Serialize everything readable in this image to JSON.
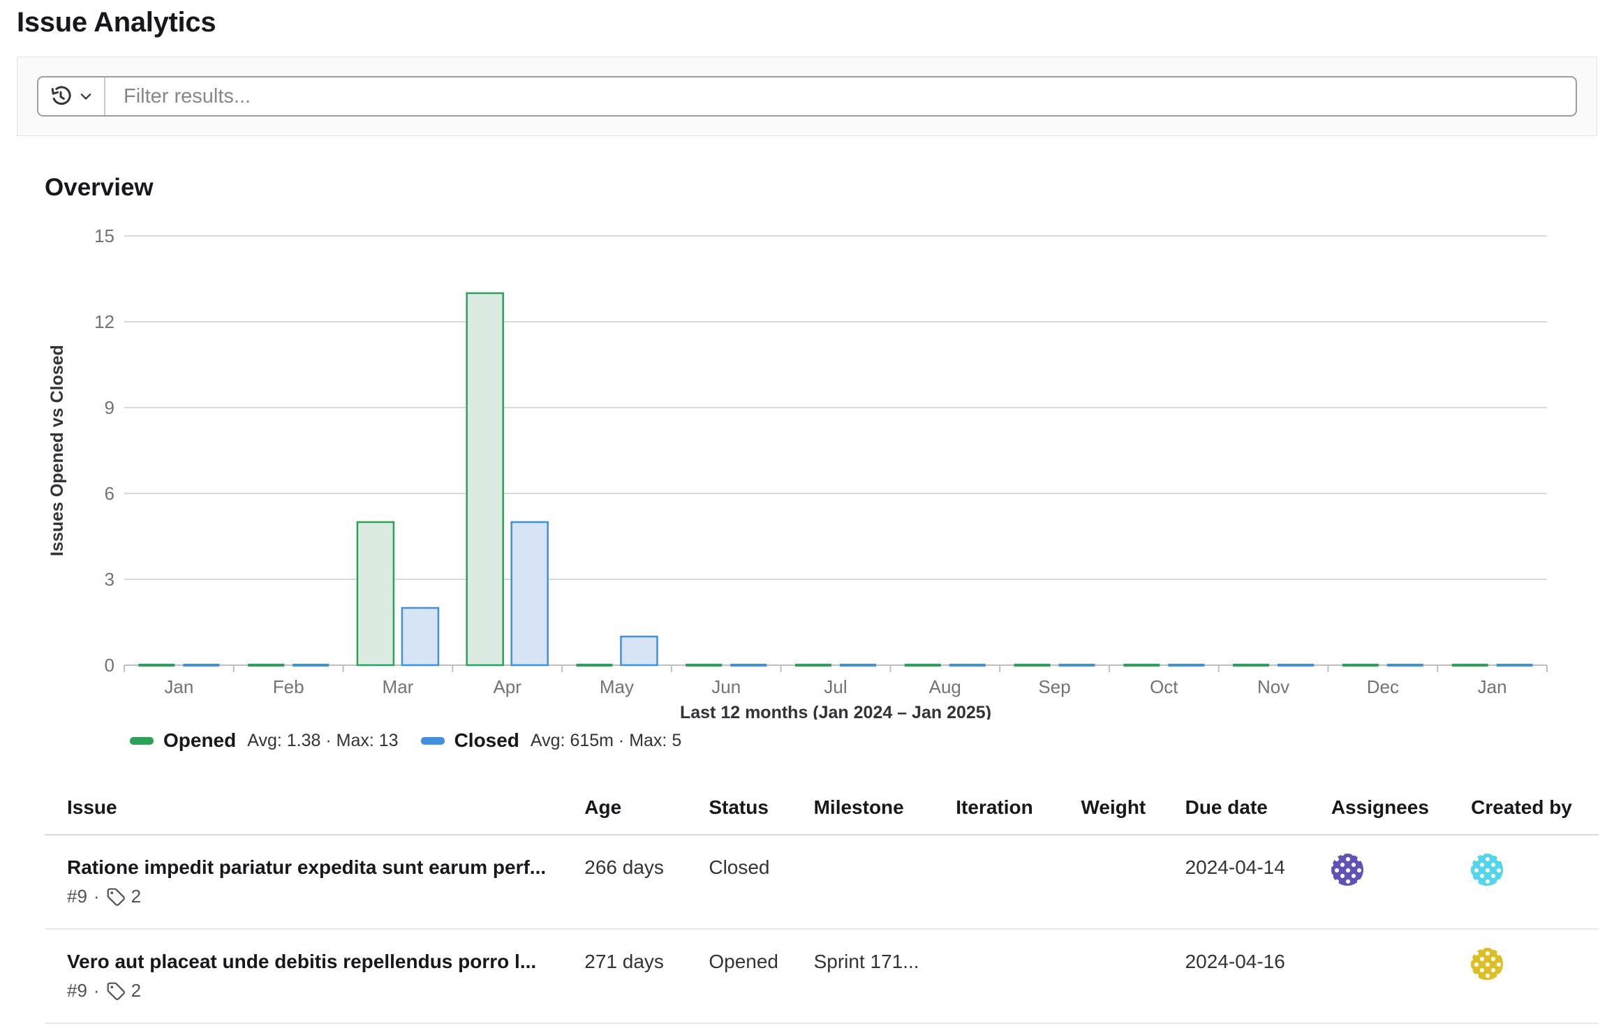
{
  "header": {
    "title": "Issue Analytics"
  },
  "filter": {
    "placeholder": "Filter results..."
  },
  "overview": {
    "heading": "Overview"
  },
  "chart_data": {
    "type": "bar",
    "title": "Overview",
    "categories": [
      "Jan",
      "Feb",
      "Mar",
      "Apr",
      "May",
      "Jun",
      "Jul",
      "Aug",
      "Sep",
      "Oct",
      "Nov",
      "Dec",
      "Jan"
    ],
    "series": [
      {
        "name": "Opened",
        "color": "#2da15a",
        "fill": "#dcebe2",
        "values": [
          0,
          0,
          5,
          13,
          0,
          0,
          0,
          0,
          0,
          0,
          0,
          0,
          0
        ],
        "stats": "Avg: 1.38 · Max: 13"
      },
      {
        "name": "Closed",
        "color": "#428fdc",
        "fill": "#d6e4f5",
        "values": [
          0,
          0,
          2,
          5,
          1,
          0,
          0,
          0,
          0,
          0,
          0,
          0,
          0
        ],
        "stats": "Avg: 615m · Max: 5"
      }
    ],
    "xlabel": "Last 12 months (Jan 2024 – Jan 2025)",
    "ylabel": "Issues Opened vs Closed",
    "ylim": [
      0,
      15
    ],
    "yticks": [
      0,
      3,
      6,
      9,
      12,
      15
    ],
    "grid": true,
    "legend_position": "bottom-left"
  },
  "table": {
    "columns": [
      "Issue",
      "Age",
      "Status",
      "Milestone",
      "Iteration",
      "Weight",
      "Due date",
      "Assignees",
      "Created by"
    ],
    "meta_separator": "·",
    "rows": [
      {
        "title": "Ratione impedit pariatur expedita sunt earum perf...",
        "ref": "#9",
        "label_count": "2",
        "age": "266 days",
        "status": "Closed",
        "milestone": "",
        "iteration": "",
        "weight": "",
        "due_date": "2024-04-14",
        "assignee_avatar_color": "#6152b8",
        "created_by_avatar_color": "#53d6ec"
      },
      {
        "title": "Vero aut placeat unde debitis repellendus porro l...",
        "ref": "#9",
        "label_count": "2",
        "age": "271 days",
        "status": "Opened",
        "milestone": "Sprint 171...",
        "iteration": "",
        "weight": "",
        "due_date": "2024-04-16",
        "assignee_avatar_color": null,
        "created_by_avatar_color": "#ddbe26"
      }
    ]
  }
}
